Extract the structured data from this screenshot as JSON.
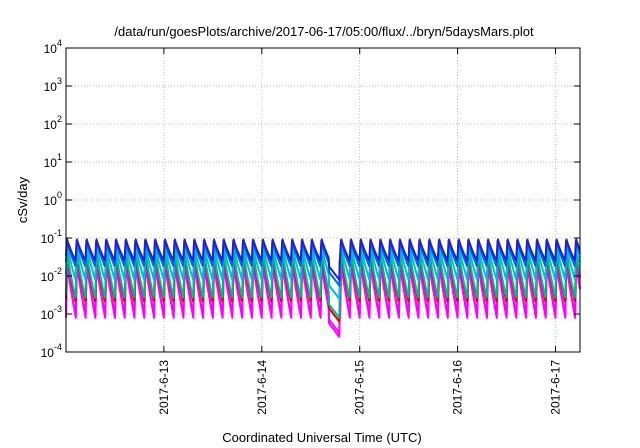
{
  "chart_data": {
    "type": "line",
    "title": "/data/run/goesPlots/archive/2017-06-17/05:00/flux/../bryn/5daysMars.plot",
    "xlabel": "Coordinated Universal Time (UTC)",
    "ylabel": "cSv/day",
    "y_scale": "log",
    "ylim_exponent": [
      -4,
      4
    ],
    "y_ticks": [
      {
        "base": "10",
        "exp": "-4"
      },
      {
        "base": "10",
        "exp": "-3"
      },
      {
        "base": "10",
        "exp": "-2"
      },
      {
        "base": "10",
        "exp": "-1"
      },
      {
        "base": "10",
        "exp": "0"
      },
      {
        "base": "10",
        "exp": "1"
      },
      {
        "base": "10",
        "exp": "2"
      },
      {
        "base": "10",
        "exp": "3"
      },
      {
        "base": "10",
        "exp": "4"
      }
    ],
    "xlim": [
      "2017-06-12 00:00",
      "2017-06-17 06:00"
    ],
    "x_ticks": [
      "2017-6-13",
      "2017-6-14",
      "2017-6-15",
      "2017-6-16",
      "2017-6-17"
    ],
    "sawtooth": {
      "period_hours": 2.4,
      "gap_start": "2017-06-14 16:30",
      "gap_end": "2017-06-14 19:00"
    },
    "grid": true,
    "series": [
      {
        "color": "#ff00ff",
        "peak_log": -1.55,
        "trough_log": -3.1
      },
      {
        "color": "#ff00ff",
        "peak_log": -1.65,
        "trough_log": -3.0
      },
      {
        "color": "#dd0000",
        "peak_log": -1.35,
        "trough_log": -2.7
      },
      {
        "color": "#00bb88",
        "peak_log": -1.3,
        "trough_log": -2.6
      },
      {
        "color": "#00bbdd",
        "peak_log": -1.15,
        "trough_log": -2.1
      },
      {
        "color": "#0066ee",
        "peak_log": -1.05,
        "trough_log": -1.75
      },
      {
        "color": "#2222cc",
        "peak_log": -1.0,
        "trough_log": -1.6
      }
    ]
  }
}
